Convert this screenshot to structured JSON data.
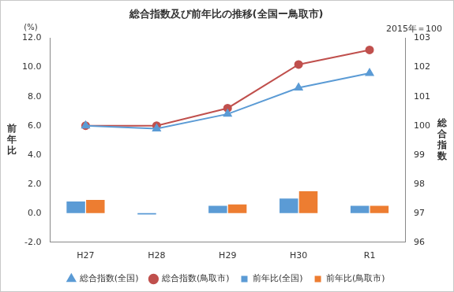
{
  "chart_data": {
    "type": "bar",
    "title": "総合指数及び前年比の推移(全国ー鳥取市)",
    "subtitle": "2015年＝100",
    "y_label": "前年比",
    "y_unit": "(%)",
    "y2_label": "総合指数",
    "categories": [
      "H27",
      "H28",
      "H29",
      "H30",
      "R1"
    ],
    "series": [
      {
        "name": "前年比(全国)",
        "type": "bar",
        "color": "#5b9bd5",
        "values": [
          0.8,
          -0.1,
          0.5,
          1.0,
          0.5
        ]
      },
      {
        "name": "前年比(鳥取市)",
        "type": "bar",
        "color": "#ed7d31",
        "values": [
          0.9,
          0.0,
          0.6,
          1.5,
          0.5
        ]
      },
      {
        "name": "総合指数(全国)",
        "type": "line",
        "axis": "y2",
        "color": "#5b9bd5",
        "marker": "triangle",
        "values": [
          100.0,
          99.9,
          100.4,
          101.3,
          101.8
        ]
      },
      {
        "name": "総合指数(鳥取市)",
        "type": "line",
        "axis": "y2",
        "color": "#c0504d",
        "marker": "circle",
        "values": [
          100.0,
          100.0,
          100.6,
          102.1,
          102.6
        ]
      }
    ],
    "ylim": [
      -2,
      12
    ],
    "yticks": [
      {
        "value": -2,
        "label": "-2.0"
      },
      {
        "value": 0,
        "label": "0.0"
      },
      {
        "value": 2,
        "label": "2.0"
      },
      {
        "value": 4,
        "label": "4.0"
      },
      {
        "value": 6,
        "label": "6.0"
      },
      {
        "value": 8,
        "label": "8.0"
      },
      {
        "value": 10,
        "label": "10.0"
      },
      {
        "value": 12,
        "label": "12.0"
      }
    ],
    "y2lim": [
      96,
      103
    ],
    "y2ticks": [
      96,
      97,
      98,
      99,
      100,
      101,
      102,
      103
    ],
    "grid": false,
    "legend": "bottom"
  }
}
